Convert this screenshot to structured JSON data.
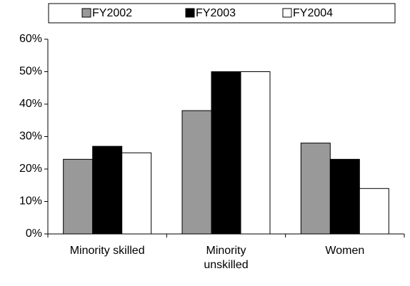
{
  "chart_data": {
    "type": "bar",
    "categories": [
      "Minority skilled",
      "Minority unskilled",
      "Women"
    ],
    "series": [
      {
        "name": "FY2002",
        "color": "#999999",
        "values": [
          23,
          38,
          28
        ]
      },
      {
        "name": "FY2003",
        "color": "#000000",
        "values": [
          27,
          50,
          23
        ]
      },
      {
        "name": "FY2004",
        "color": "#ffffff",
        "values": [
          25,
          50,
          14
        ]
      }
    ],
    "ylim": [
      0,
      60
    ],
    "yticks": [
      {
        "value": 0,
        "label": "0%"
      },
      {
        "value": 10,
        "label": "10%"
      },
      {
        "value": 20,
        "label": "20%"
      },
      {
        "value": 30,
        "label": "30%"
      },
      {
        "value": 40,
        "label": "40%"
      },
      {
        "value": 50,
        "label": "50%"
      },
      {
        "value": 60,
        "label": "60%"
      }
    ],
    "grid": false,
    "legend": "top"
  }
}
